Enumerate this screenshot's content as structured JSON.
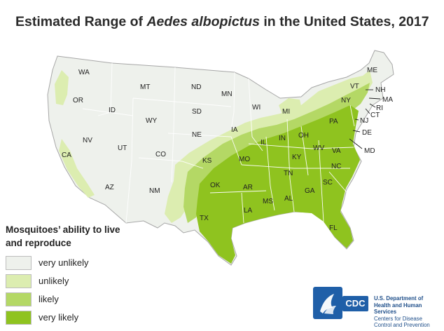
{
  "title": {
    "prefix": "Estimated Range of ",
    "species": "Aedes albopictus",
    "suffix": " in the United States, 2017"
  },
  "legend": {
    "title": "Mosquitoes’ ability to live and reproduce",
    "items": [
      {
        "label": "very unlikely",
        "color": "#eef1ec"
      },
      {
        "label": "unlikely",
        "color": "#dcedb0"
      },
      {
        "label": "likely",
        "color": "#b4d865"
      },
      {
        "label": "very likely",
        "color": "#8fc31f"
      }
    ]
  },
  "states": [
    {
      "abbr": "WA",
      "category": "very unlikely"
    },
    {
      "abbr": "OR",
      "category": "very unlikely"
    },
    {
      "abbr": "CA",
      "category": "very unlikely"
    },
    {
      "abbr": "NV",
      "category": "very unlikely"
    },
    {
      "abbr": "ID",
      "category": "very unlikely"
    },
    {
      "abbr": "MT",
      "category": "very unlikely"
    },
    {
      "abbr": "WY",
      "category": "very unlikely"
    },
    {
      "abbr": "UT",
      "category": "very unlikely"
    },
    {
      "abbr": "AZ",
      "category": "very unlikely"
    },
    {
      "abbr": "CO",
      "category": "very unlikely"
    },
    {
      "abbr": "NM",
      "category": "very unlikely"
    },
    {
      "abbr": "ND",
      "category": "very unlikely"
    },
    {
      "abbr": "SD",
      "category": "very unlikely"
    },
    {
      "abbr": "NE",
      "category": "very unlikely"
    },
    {
      "abbr": "KS",
      "category": "very unlikely"
    },
    {
      "abbr": "MN",
      "category": "very unlikely"
    },
    {
      "abbr": "IA",
      "category": "very unlikely"
    },
    {
      "abbr": "WI",
      "category": "very unlikely"
    },
    {
      "abbr": "MI",
      "category": "unlikely"
    },
    {
      "abbr": "IL",
      "category": "very likely"
    },
    {
      "abbr": "IN",
      "category": "very likely"
    },
    {
      "abbr": "OH",
      "category": "very likely"
    },
    {
      "abbr": "MO",
      "category": "very likely"
    },
    {
      "abbr": "OK",
      "category": "very likely"
    },
    {
      "abbr": "TX",
      "category": "very likely"
    },
    {
      "abbr": "AR",
      "category": "very likely"
    },
    {
      "abbr": "LA",
      "category": "very likely"
    },
    {
      "abbr": "MS",
      "category": "very likely"
    },
    {
      "abbr": "AL",
      "category": "very likely"
    },
    {
      "abbr": "GA",
      "category": "very likely"
    },
    {
      "abbr": "FL",
      "category": "very likely"
    },
    {
      "abbr": "TN",
      "category": "very likely"
    },
    {
      "abbr": "KY",
      "category": "very likely"
    },
    {
      "abbr": "WV",
      "category": "very likely"
    },
    {
      "abbr": "VA",
      "category": "very likely"
    },
    {
      "abbr": "NC",
      "category": "very likely"
    },
    {
      "abbr": "SC",
      "category": "very likely"
    },
    {
      "abbr": "PA",
      "category": "likely"
    },
    {
      "abbr": "NY",
      "category": "unlikely"
    },
    {
      "abbr": "VT",
      "category": "unlikely"
    },
    {
      "abbr": "NH",
      "category": "unlikely"
    },
    {
      "abbr": "ME",
      "category": "very unlikely"
    },
    {
      "abbr": "MA",
      "category": "likely"
    },
    {
      "abbr": "RI",
      "category": "likely"
    },
    {
      "abbr": "CT",
      "category": "likely"
    },
    {
      "abbr": "NJ",
      "category": "very likely"
    },
    {
      "abbr": "DE",
      "category": "very likely"
    },
    {
      "abbr": "MD",
      "category": "very likely"
    }
  ],
  "logo": {
    "cdc_mark": "CDC",
    "org_line1": "U.S. Department of",
    "org_line2": "Health and Human Services",
    "org_line3": "Centers for Disease",
    "org_line4": "Control and Prevention"
  }
}
